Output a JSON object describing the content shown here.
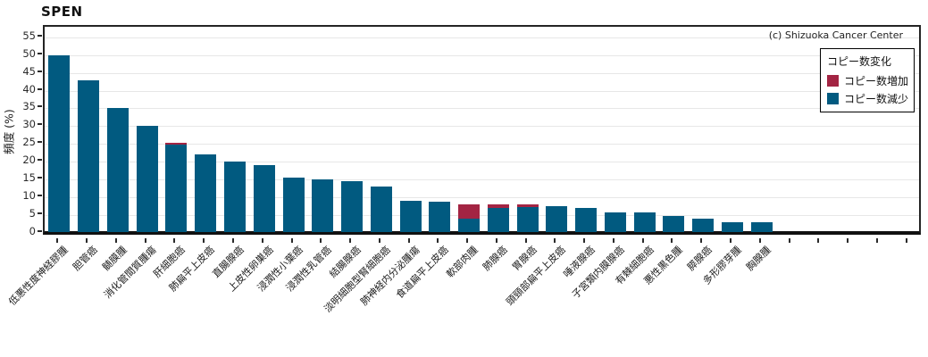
{
  "chart": {
    "title": "SPEN",
    "ylabel": "頻度 (%)",
    "copyright": "(c) Shizuoka Cancer Center",
    "legend": {
      "title": "コピー数変化",
      "items": [
        {
          "key": "increase",
          "label": "コピー数増加",
          "color": "#a32443"
        },
        {
          "key": "decrease",
          "label": "コピー数減少",
          "color": "#015a80"
        }
      ]
    }
  },
  "chart_data": {
    "type": "bar",
    "stacked": true,
    "title": "SPEN",
    "xlabel": "",
    "ylabel": "頻度 (%)",
    "ylim": [
      0,
      58
    ],
    "yticks": [
      0,
      5,
      10,
      15,
      20,
      25,
      30,
      35,
      40,
      45,
      50,
      55
    ],
    "grid": "horizontal",
    "legend_position": "top-right-inside",
    "categories": [
      "低悪性度神経膠腫",
      "胆管癌",
      "髄膜腫",
      "消化管間質腫瘍",
      "肝細胞癌",
      "肺扁平上皮癌",
      "直腸腺癌",
      "上皮性卵巣癌",
      "浸潤性小葉癌",
      "浸潤性乳管癌",
      "結腸腺癌",
      "淡明細胞型腎細胞癌",
      "肺神経内分泌腫瘍",
      "食道扁平上皮癌",
      "軟部肉腫",
      "肺腺癌",
      "胃腺癌",
      "頭頸部扁平上皮癌",
      "唾液腺癌",
      "子宮類内膜腺癌",
      "有棘細胞癌",
      "悪性黒色腫",
      "膵腺癌",
      "多形膠芽腫",
      "胸腺腫",
      "",
      "",
      "",
      "",
      ""
    ],
    "series": [
      {
        "name": "コピー数増加",
        "color": "#a32443",
        "values": [
          0,
          0,
          0,
          0,
          0.5,
          0,
          0,
          0,
          0,
          0,
          0,
          0,
          0,
          0,
          3.9,
          0.9,
          0.8,
          0,
          0,
          0,
          0,
          0,
          0,
          0,
          0,
          0,
          0,
          0,
          0,
          0
        ]
      },
      {
        "name": "コピー数減少",
        "color": "#015a80",
        "values": [
          50,
          43,
          35,
          30,
          24.8,
          22,
          20,
          19,
          15.4,
          15,
          14.4,
          12.9,
          9,
          8.8,
          4.0,
          7.0,
          7.1,
          7.3,
          7.0,
          5.6,
          5.6,
          4.6,
          4.0,
          3.0,
          2.8,
          0,
          0,
          0,
          0,
          0
        ]
      }
    ]
  }
}
